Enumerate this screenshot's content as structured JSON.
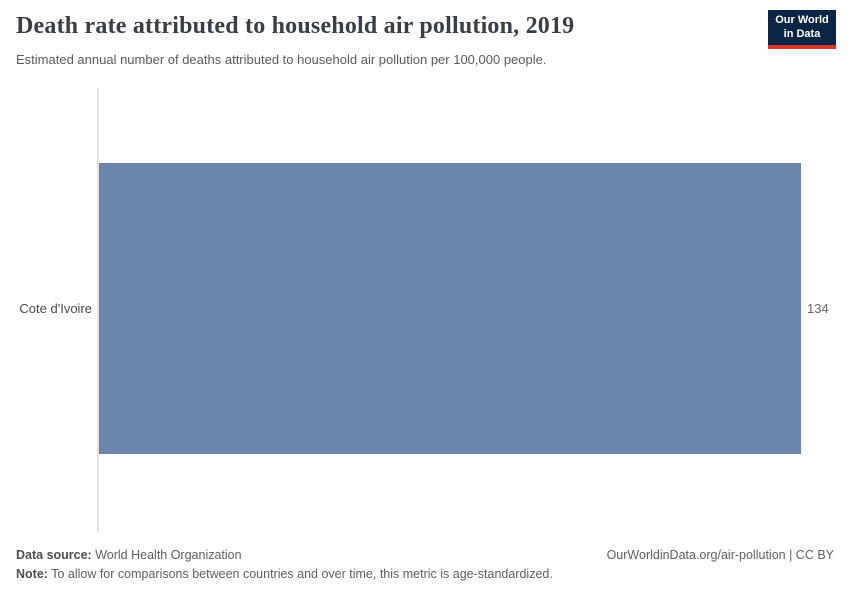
{
  "header": {
    "title": "Death rate attributed to household air pollution, 2019",
    "subtitle": "Estimated annual number of deaths attributed to household air pollution per 100,000 people.",
    "logo_line1": "Our World",
    "logo_line2": "in Data"
  },
  "chart_data": {
    "type": "bar",
    "orientation": "horizontal",
    "title": "Death rate attributed to household air pollution, 2019",
    "subtitle": "Estimated annual number of deaths attributed to household air pollution per 100,000 people.",
    "categories": [
      "Cote d'Ivoire"
    ],
    "values": [
      134
    ],
    "value_labels": [
      "134"
    ],
    "xlim": [
      0,
      134
    ],
    "grid": false,
    "legend": "none",
    "bar_color": "#6c85ac"
  },
  "footer": {
    "data_source_label": "Data source:",
    "data_source_value": "World Health Organization",
    "note_label": "Note:",
    "note_value": "To allow for comparisons between countries and over time, this metric is age-standardized.",
    "credit": "OurWorldinData.org/air-pollution | CC BY"
  },
  "colors": {
    "bar": "#6c85ac",
    "logo_bg": "#0b2545",
    "logo_accent": "#dc352b",
    "axis_line": "#e2e2e2"
  }
}
